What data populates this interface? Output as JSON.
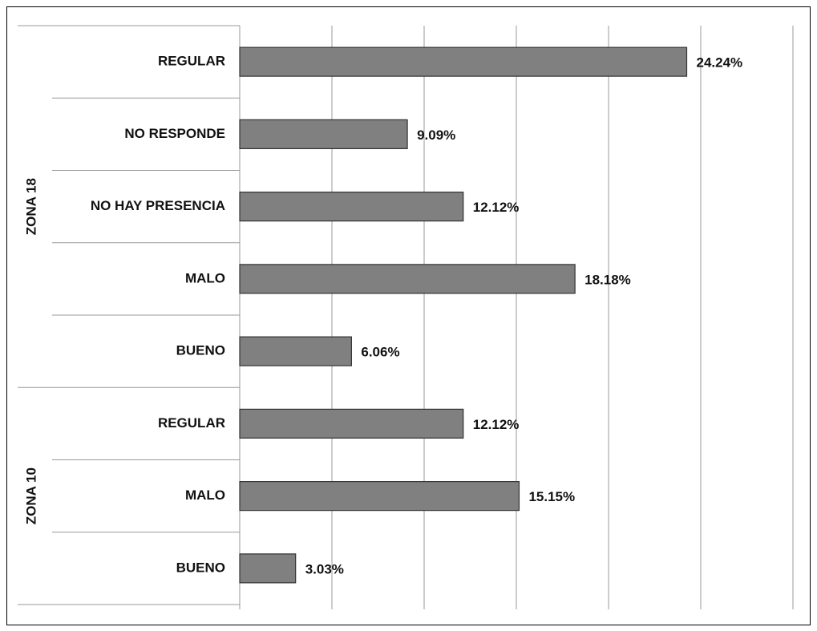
{
  "chart_data": {
    "type": "bar",
    "orientation": "horizontal",
    "color": "#808080",
    "xlim": [
      0,
      30
    ],
    "xticks": [
      0,
      5,
      10,
      15,
      20,
      25,
      30
    ],
    "grid": true,
    "groups": [
      {
        "name": "ZONA 18",
        "categories": [
          "REGULAR",
          "NO RESPONDE",
          "NO HAY PRESENCIA",
          "MALO",
          "BUENO"
        ],
        "values": [
          24.24,
          9.09,
          12.12,
          18.18,
          6.06
        ],
        "value_labels": [
          "24.24%",
          "9.09%",
          "12.12%",
          "18.18%",
          "6.06%"
        ]
      },
      {
        "name": "ZONA 10",
        "categories": [
          "REGULAR",
          "MALO",
          "BUENO"
        ],
        "values": [
          12.12,
          15.15,
          3.03
        ],
        "value_labels": [
          "12.12%",
          "15.15%",
          "3.03%"
        ]
      }
    ]
  }
}
